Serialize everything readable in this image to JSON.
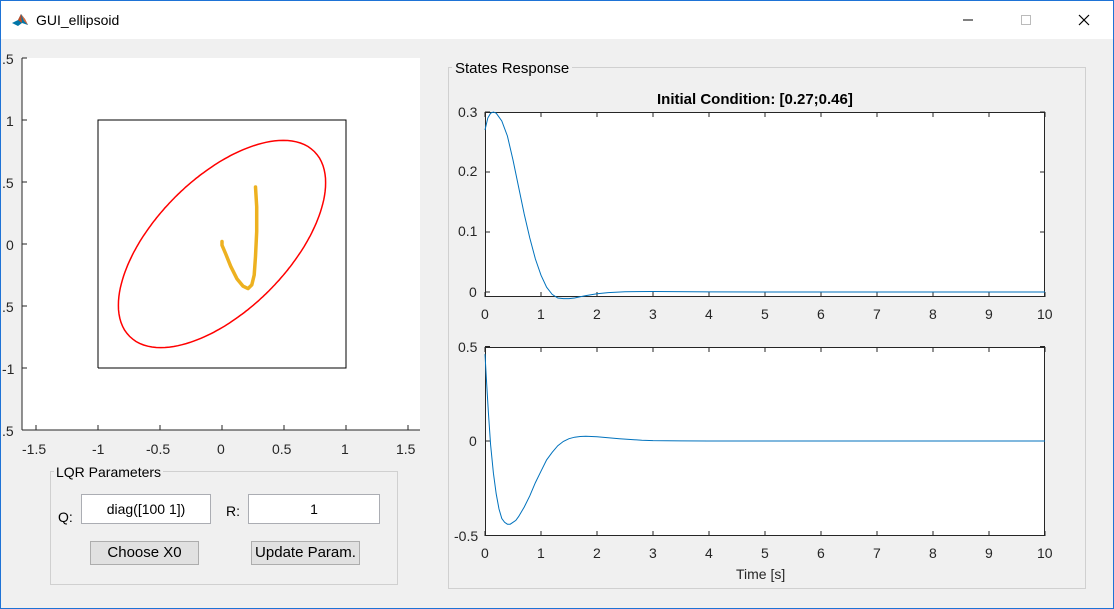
{
  "window": {
    "title": "GUI_ellipsoid",
    "buttons": [
      "minimize",
      "maximize",
      "close"
    ]
  },
  "left_axes": {
    "x_ticks": [
      "-1.5",
      "-1",
      "-0.5",
      "0",
      "0.5",
      "1",
      "1.5"
    ],
    "y_ticks": [
      ".5",
      "1",
      ".5",
      "0",
      ".5",
      "-1",
      ".5"
    ]
  },
  "lqr": {
    "title": "LQR Parameters",
    "q_label": "Q:",
    "q_value": "diag([100 1])",
    "r_label": "R:",
    "r_value": "1",
    "choose_label": "Choose X0",
    "update_label": "Update Param."
  },
  "states": {
    "panel_title": "States Response",
    "top_title": "Initial Condition: [0.27;0.46]",
    "top_y_ticks": [
      "0.3",
      "0.2",
      "0.1",
      "0"
    ],
    "bottom_y_ticks": [
      "0.5",
      "0",
      "-0.5"
    ],
    "x_ticks": [
      "0",
      "1",
      "2",
      "3",
      "4",
      "5",
      "6",
      "7",
      "8",
      "9",
      "10"
    ],
    "xlabel": "Time [s]"
  },
  "chart_data": [
    {
      "type": "line",
      "xlim": [
        -1.6,
        1.6
      ],
      "ylim": [
        -1.5,
        1.5
      ],
      "series": [
        {
          "role": "boundary-box",
          "color": "#000000",
          "x": [
            -1,
            1,
            1,
            -1,
            -1
          ],
          "y": [
            -1,
            -1,
            1,
            1,
            -1
          ]
        },
        {
          "role": "invariant-ellipse",
          "color": "#ff0000",
          "center": [
            0,
            0
          ],
          "shape_matrix": [
            [
              2.2,
              -1.3
            ],
            [
              -1.3,
              2.2
            ]
          ]
        },
        {
          "role": "state-trajectory",
          "color": "#edb120",
          "x": [
            0.27,
            0.28,
            0.28,
            0.27,
            0.26,
            0.24,
            0.21,
            0.17,
            0.12,
            0.07,
            0.03,
            0.0,
            0.0
          ],
          "y": [
            0.46,
            0.3,
            0.1,
            -0.1,
            -0.25,
            -0.33,
            -0.36,
            -0.34,
            -0.28,
            -0.18,
            -0.08,
            -0.01,
            0.02
          ]
        }
      ]
    },
    {
      "type": "line",
      "title": "Initial Condition: [0.27;0.46]",
      "xlim": [
        0,
        10
      ],
      "ylim": [
        -0.01,
        0.3
      ],
      "series": [
        {
          "color": "#0072bd",
          "x": [
            0,
            0.05,
            0.1,
            0.15,
            0.2,
            0.3,
            0.4,
            0.5,
            0.6,
            0.7,
            0.8,
            0.9,
            1.0,
            1.1,
            1.2,
            1.3,
            1.4,
            1.5,
            1.6,
            1.7,
            1.8,
            2.0,
            2.2,
            2.5,
            3.0,
            4.0,
            5.0,
            6.0,
            7.0,
            8.0,
            9.0,
            10.0
          ],
          "y": [
            0.27,
            0.29,
            0.298,
            0.3,
            0.298,
            0.285,
            0.26,
            0.22,
            0.175,
            0.13,
            0.09,
            0.055,
            0.028,
            0.008,
            -0.004,
            -0.01,
            -0.011,
            -0.011,
            -0.01,
            -0.008,
            -0.006,
            -0.003,
            -0.001,
            0.0005,
            0.0008,
            0.0002,
            0,
            0,
            0,
            0,
            0,
            0
          ]
        }
      ]
    },
    {
      "type": "line",
      "xlabel": "Time [s]",
      "xlim": [
        0,
        10
      ],
      "ylim": [
        -0.5,
        0.5
      ],
      "series": [
        {
          "color": "#0072bd",
          "x": [
            0,
            0.03,
            0.06,
            0.1,
            0.15,
            0.2,
            0.25,
            0.3,
            0.35,
            0.4,
            0.45,
            0.5,
            0.55,
            0.6,
            0.7,
            0.8,
            0.9,
            1.0,
            1.1,
            1.2,
            1.3,
            1.4,
            1.5,
            1.6,
            1.7,
            1.8,
            1.9,
            2.0,
            2.2,
            2.4,
            2.6,
            2.8,
            3.0,
            3.5,
            4.0,
            5.0,
            6.0,
            7.0,
            8.0,
            9.0,
            10.0
          ],
          "y": [
            0.46,
            0.3,
            0.15,
            -0.02,
            -0.17,
            -0.28,
            -0.36,
            -0.41,
            -0.43,
            -0.44,
            -0.44,
            -0.43,
            -0.42,
            -0.4,
            -0.35,
            -0.29,
            -0.22,
            -0.16,
            -0.1,
            -0.06,
            -0.025,
            -0.002,
            0.012,
            0.02,
            0.024,
            0.025,
            0.024,
            0.022,
            0.017,
            0.012,
            0.008,
            0.004,
            0.002,
            0.0005,
            0,
            0,
            0,
            0,
            0,
            0,
            0
          ]
        }
      ]
    }
  ]
}
